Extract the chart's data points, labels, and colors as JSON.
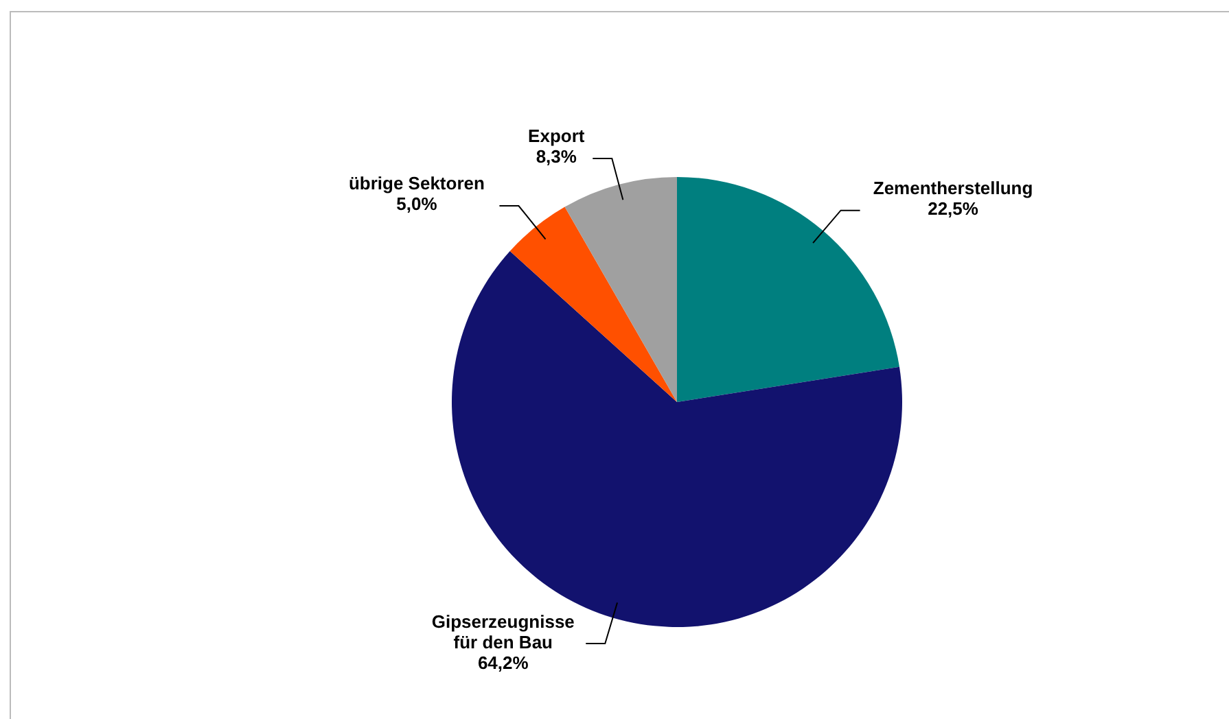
{
  "chart_data": {
    "type": "pie",
    "categories": [
      "Zementherstellung",
      "Gipserzeugnisse für den Bau",
      "übrige Sektoren",
      "Export"
    ],
    "values": [
      22.5,
      64.2,
      5.0,
      8.3
    ],
    "value_labels": [
      "22,5%",
      "64,2%",
      "5,0%",
      "8,3%"
    ],
    "colors": [
      "#007f7f",
      "#12126e",
      "#ff5000",
      "#a0a0a0"
    ],
    "legend": false
  }
}
